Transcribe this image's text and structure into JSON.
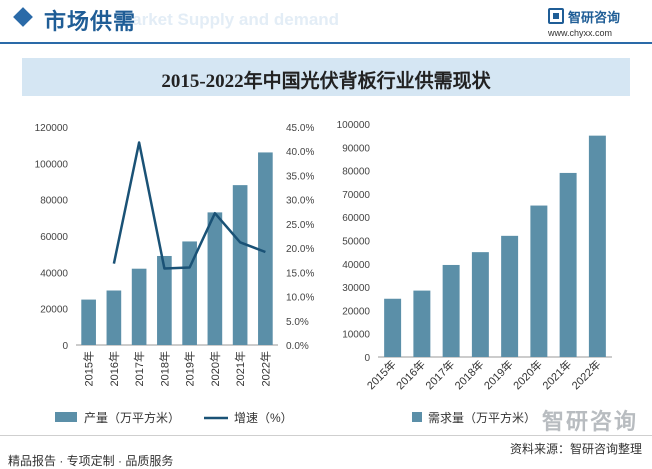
{
  "header": {
    "title": "市场供需",
    "watermark": "Market Supply and demand",
    "logo_name": "智研咨询",
    "logo_url": "www.chyxx.com"
  },
  "title": "2015-2022年中国光伏背板行业供需现状",
  "chart_data": [
    {
      "type": "bar+line",
      "categories": [
        "2015年",
        "2016年",
        "2017年",
        "2018年",
        "2019年",
        "2020年",
        "2021年",
        "2022年"
      ],
      "series": [
        {
          "name": "产量（万平方米）",
          "type": "bar",
          "axis": "left",
          "values": [
            25000,
            30000,
            42000,
            49000,
            57000,
            73000,
            88000,
            106000
          ]
        },
        {
          "name": "增速（%）",
          "type": "line",
          "axis": "right",
          "values": [
            null,
            0.168,
            0.418,
            0.158,
            0.16,
            0.272,
            0.212,
            0.192
          ]
        }
      ],
      "yleft": {
        "ylim": [
          0,
          120000
        ],
        "ticks": [
          "0",
          "20000",
          "40000",
          "60000",
          "80000",
          "100000",
          "120000"
        ]
      },
      "yright": {
        "ylim": [
          0,
          0.45
        ],
        "ticks": [
          "0.0%",
          "5.0%",
          "10.0%",
          "15.0%",
          "20.0%",
          "25.0%",
          "30.0%",
          "35.0%",
          "40.0%",
          "45.0%"
        ]
      },
      "colors": {
        "bar": "#5b8fa8",
        "line": "#1a5276"
      }
    },
    {
      "type": "bar",
      "categories": [
        "2015年",
        "2016年",
        "2017年",
        "2018年",
        "2019年",
        "2020年",
        "2021年",
        "2022年"
      ],
      "series": [
        {
          "name": "需求量（万平方米）",
          "values": [
            25000,
            28500,
            39500,
            45000,
            52000,
            65000,
            79000,
            95000
          ]
        }
      ],
      "ylim": [
        0,
        100000
      ],
      "ticks": [
        "0",
        "10000",
        "20000",
        "30000",
        "40000",
        "50000",
        "60000",
        "70000",
        "80000",
        "90000",
        "100000"
      ],
      "colors": {
        "bar": "#5b8fa8"
      }
    }
  ],
  "footer": {
    "left": "精品报告 · 专项定制 · 品质服务",
    "right": "资料来源：智研咨询整理",
    "brand": "智研咨询"
  }
}
